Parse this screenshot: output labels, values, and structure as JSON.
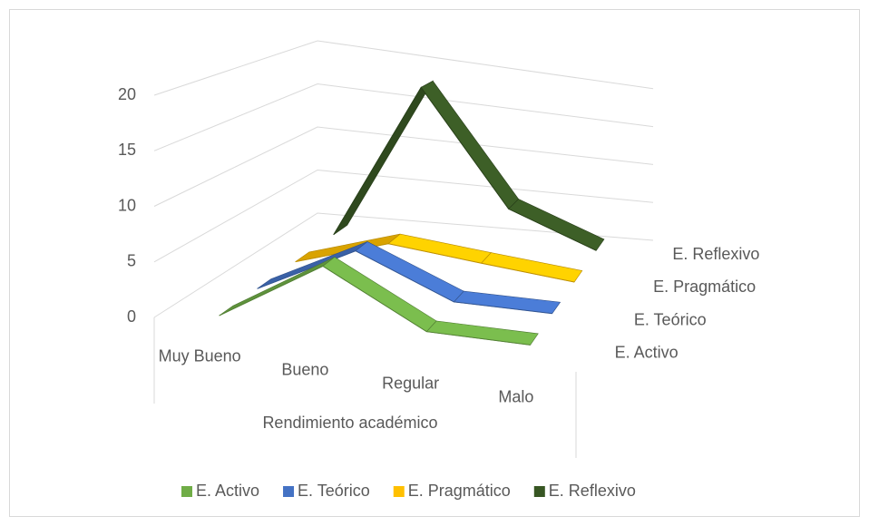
{
  "chart_data": {
    "type": "line3d",
    "x_label": "Rendimiento académico",
    "categories": [
      "Muy Bueno",
      "Bueno",
      "Regular",
      "Malo"
    ],
    "series": [
      {
        "name": "E. Activo",
        "color": "#70ad47",
        "values": [
          0,
          6,
          1,
          1
        ]
      },
      {
        "name": "E. Teórico",
        "color": "#4472c4",
        "values": [
          0,
          5,
          1,
          1
        ]
      },
      {
        "name": "E. Pragmático",
        "color": "#ffc000",
        "values": [
          0,
          3,
          2,
          1
        ]
      },
      {
        "name": "E. Reflexivo",
        "color": "#375623",
        "values": [
          0,
          18,
          5,
          1
        ]
      }
    ],
    "ylim": [
      0,
      20
    ],
    "yticks": [
      0,
      5,
      10,
      15,
      20
    ],
    "grid": true,
    "legend": "bottom"
  }
}
